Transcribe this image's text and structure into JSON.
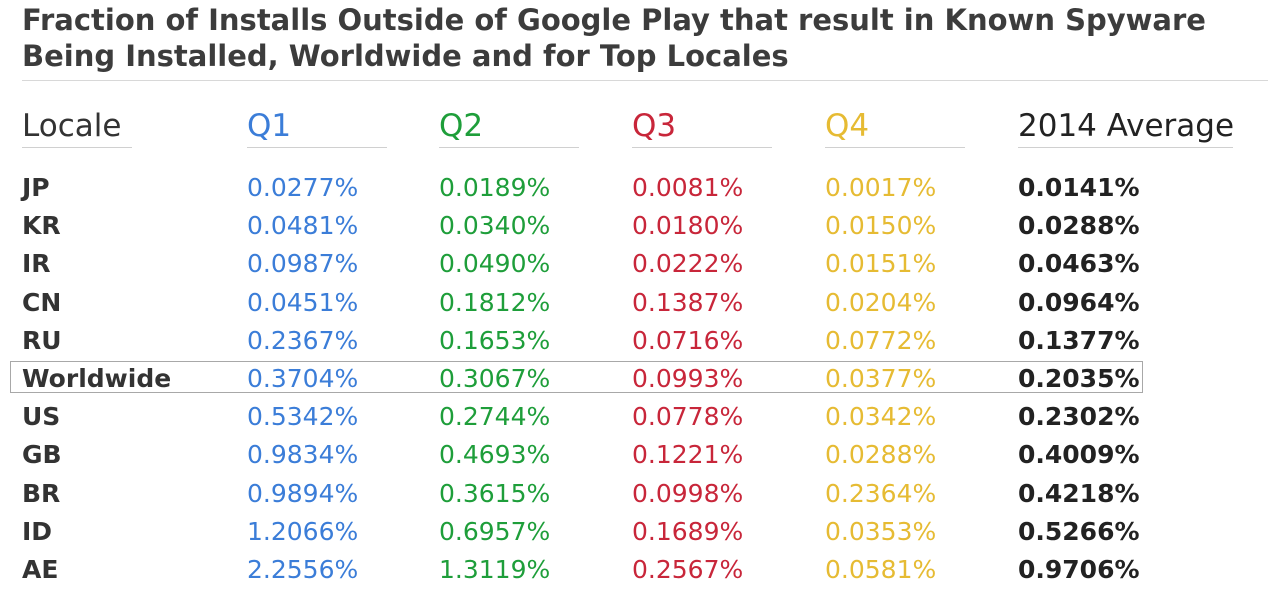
{
  "chart_data": {
    "type": "table",
    "title": "Fraction of Installs Outside of Google Play that result in Known Spyware Being Installed, Worldwide and for Top Locales",
    "columns": [
      "Locale",
      "Q1",
      "Q2",
      "Q3",
      "Q4",
      "2014 Average"
    ],
    "column_colors": {
      "Locale": "#333333",
      "Q1": "#3b7dd8",
      "Q2": "#1e9e3a",
      "Q3": "#c8263a",
      "Q4": "#e6bb33",
      "2014 Average": "#222222"
    },
    "highlighted_row": "Worldwide",
    "rows": [
      [
        "JP",
        "0.0277%",
        "0.0189%",
        "0.0081%",
        "0.0017%",
        "0.0141%"
      ],
      [
        "KR",
        "0.0481%",
        "0.0340%",
        "0.0180%",
        "0.0150%",
        "0.0288%"
      ],
      [
        "IR",
        "0.0987%",
        "0.0490%",
        "0.0222%",
        "0.0151%",
        "0.0463%"
      ],
      [
        "CN",
        "0.0451%",
        "0.1812%",
        "0.1387%",
        "0.0204%",
        "0.0964%"
      ],
      [
        "RU",
        "0.2367%",
        "0.1653%",
        "0.0716%",
        "0.0772%",
        "0.1377%"
      ],
      [
        "Worldwide",
        "0.3704%",
        "0.3067%",
        "0.0993%",
        "0.0377%",
        "0.2035%"
      ],
      [
        "US",
        "0.5342%",
        "0.2744%",
        "0.0778%",
        "0.0342%",
        "0.2302%"
      ],
      [
        "GB",
        "0.9834%",
        "0.4693%",
        "0.1221%",
        "0.0288%",
        "0.4009%"
      ],
      [
        "BR",
        "0.9894%",
        "0.3615%",
        "0.0998%",
        "0.2364%",
        "0.4218%"
      ],
      [
        "ID",
        "1.2066%",
        "0.6957%",
        "0.1689%",
        "0.0353%",
        "0.5266%"
      ],
      [
        "AE",
        "2.2556%",
        "1.3119%",
        "0.2567%",
        "0.0581%",
        "0.9706%"
      ]
    ]
  }
}
